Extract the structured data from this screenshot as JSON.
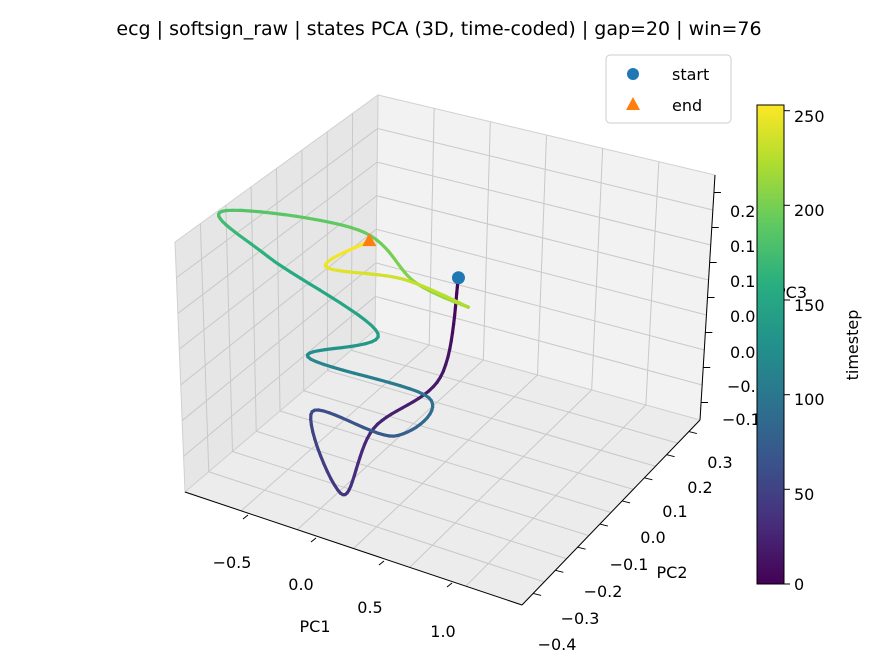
{
  "chart_data": {
    "type": "line",
    "projection": "3d",
    "title": "ecg | softsign_raw | states PCA (3D, time-coded) | gap=20 | win=76",
    "xlabel": "PC1",
    "ylabel": "PC2",
    "zlabel": "PC3",
    "grid": true,
    "x_ticks": [
      "−0.5",
      "0.0",
      "0.5",
      "1.0"
    ],
    "y_ticks": [
      "−0.4",
      "−0.3",
      "−0.2",
      "−0.1",
      "0.0",
      "0.1",
      "0.2",
      "0.3"
    ],
    "z_ticks": [
      "−0.1",
      "−0.0",
      "0.0",
      "0.0",
      "0.1",
      "0.1",
      "0.2"
    ],
    "colormap": "viridis",
    "colorbar": {
      "label": "timestep",
      "ticks": [
        "0",
        "50",
        "100",
        "150",
        "200",
        "250"
      ],
      "range": [
        0,
        253
      ]
    },
    "legend": {
      "placement": "top-right",
      "entries": [
        {
          "label": "start",
          "marker": "circle",
          "color": "#1f77b4"
        },
        {
          "label": "end",
          "marker": "triangle",
          "color": "#ff7f0e"
        }
      ]
    },
    "series": [
      {
        "color_by": "timestep",
        "t": [
          0,
          15,
          25,
          37,
          55,
          72,
          95,
          118,
          140,
          158,
          180,
          192,
          205,
          218,
          232,
          245,
          253
        ],
        "x": [
          0.91,
          0.78,
          0.38,
          0.19,
          0.02,
          0.51,
          0.72,
          0.0,
          0.42,
          -0.23,
          -0.5,
          0.31,
          0.64,
          0.96,
          0.58,
          0.12,
          0.38
        ],
        "y": [
          0.22,
          -0.08,
          -0.18,
          -0.33,
          -0.15,
          -0.12,
          -0.03,
          -0.05,
          0.03,
          0.09,
          0.14,
          0.16,
          0.1,
          0.12,
          0.18,
          0.16,
          0.22
        ],
        "z": [
          0.03,
          0.02,
          -0.04,
          -0.08,
          -0.06,
          -0.07,
          -0.04,
          -0.03,
          0.0,
          0.03,
          0.05,
          0.08,
          0.06,
          0.04,
          0.02,
          0.01,
          0.04
        ]
      }
    ]
  }
}
